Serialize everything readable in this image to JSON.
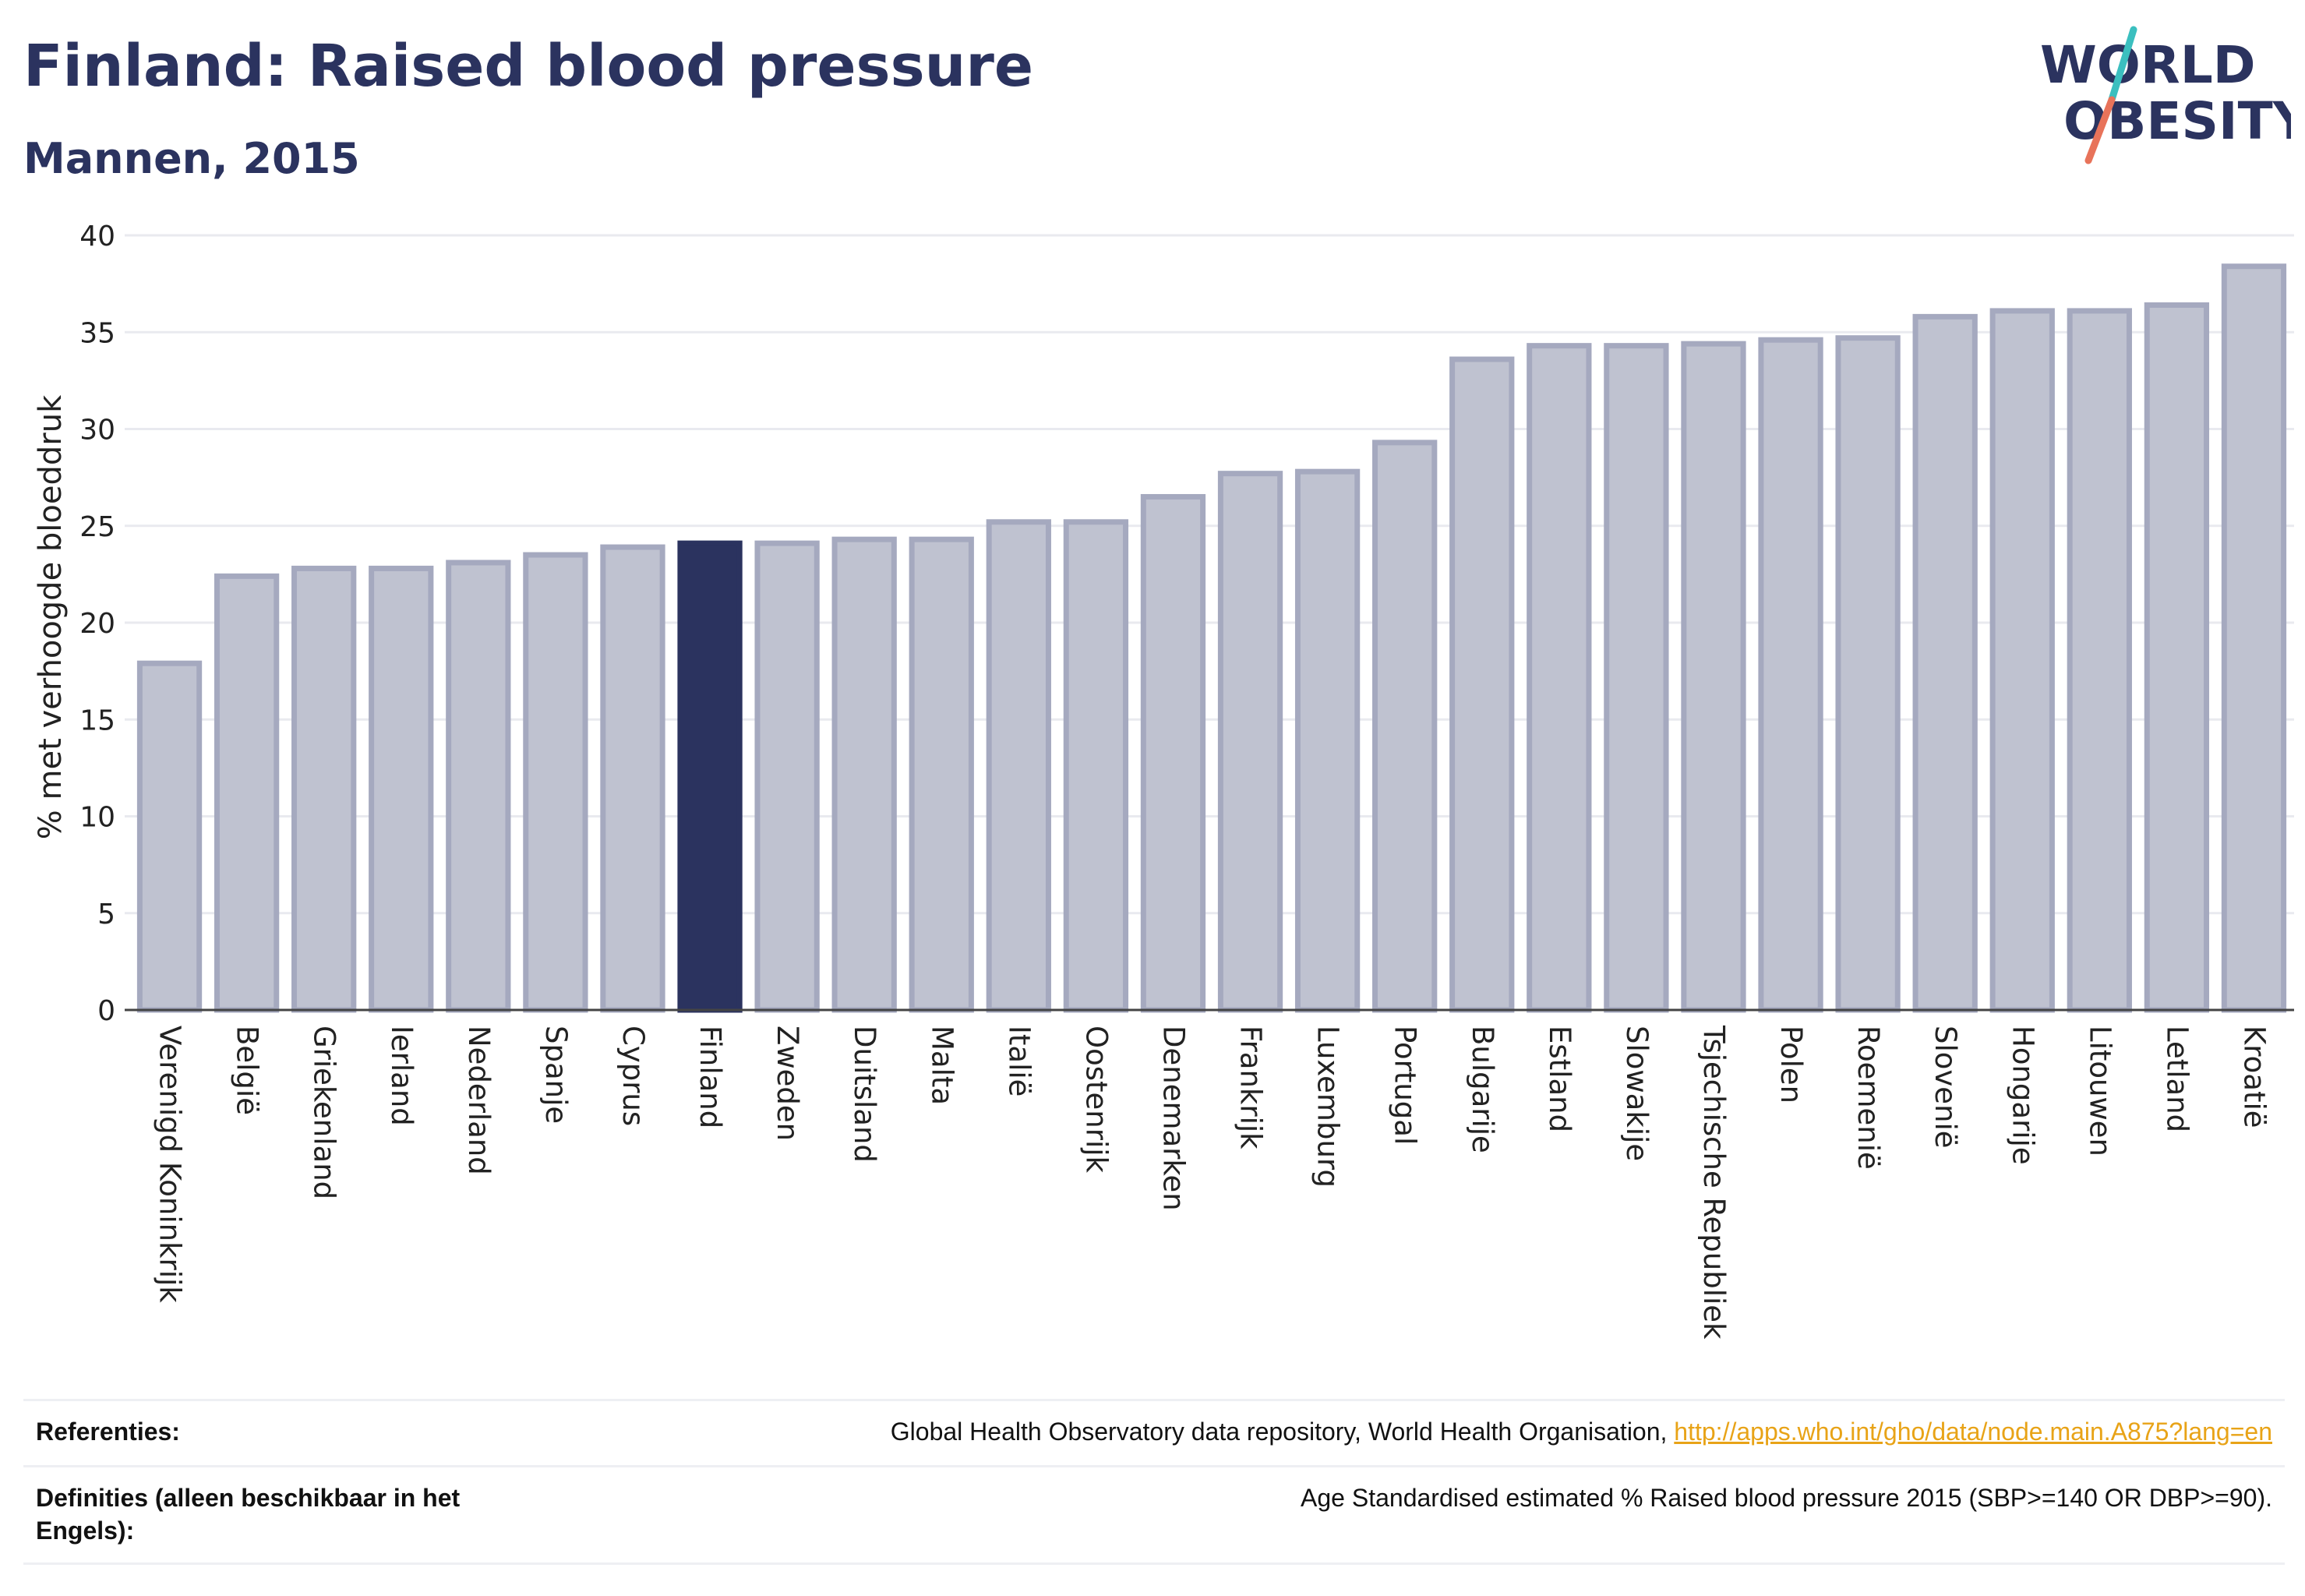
{
  "header": {
    "title": "Finland: Raised blood pressure",
    "subtitle": "Mannen, 2015"
  },
  "logo": {
    "line1": "WORLD",
    "line2": "OBESITY",
    "colors": {
      "text": "#2b335f",
      "slash_top": "#3bbfbf",
      "slash_bottom": "#e8735a"
    }
  },
  "chart_data": {
    "type": "bar",
    "title": "Finland: Raised blood pressure",
    "subtitle": "Mannen, 2015",
    "ylabel": "% met verhoogde bloeddruk",
    "xlabel": "",
    "ylim": [
      0,
      40
    ],
    "yticks": [
      0,
      5,
      10,
      15,
      20,
      25,
      30,
      35,
      40
    ],
    "grid": true,
    "highlight": "Finland",
    "colors": {
      "bar": "#bfc2d0",
      "bar_border": "#a5a9bf",
      "highlight": "#2b335f",
      "grid": "#e9eaef",
      "axis": "#555555"
    },
    "categories": [
      "Verenigd Koninkrijk",
      "België",
      "Griekenland",
      "Ierland",
      "Nederland",
      "Spanje",
      "Cyprus",
      "Finland",
      "Zweden",
      "Duitsland",
      "Malta",
      "Italië",
      "Oostenrijk",
      "Denemarken",
      "Frankrijk",
      "Luxemburg",
      "Portugal",
      "Bulgarije",
      "Estland",
      "Slowakije",
      "Tsjechische Republiek",
      "Polen",
      "Roemenië",
      "Slovenië",
      "Hongarije",
      "Litouwen",
      "Letland",
      "Kroatië"
    ],
    "values": [
      17.9,
      22.4,
      22.8,
      22.8,
      23.1,
      23.5,
      23.9,
      24.1,
      24.1,
      24.3,
      24.3,
      25.2,
      25.2,
      26.5,
      27.7,
      27.8,
      29.3,
      33.6,
      34.3,
      34.3,
      34.4,
      34.6,
      34.7,
      35.8,
      36.1,
      36.1,
      36.4,
      38.4
    ]
  },
  "references": {
    "ref_label": "Referenties:",
    "ref_text": "Global Health Observatory data repository, World Health Organisation, ",
    "ref_link": "http://apps.who.int/gho/data/node.main.A875?lang=en",
    "def_label": "Definities (alleen beschikbaar in het Engels):",
    "def_text": "Age Standardised estimated % Raised blood pressure 2015 (SBP>=140 OR DBP>=90)."
  }
}
